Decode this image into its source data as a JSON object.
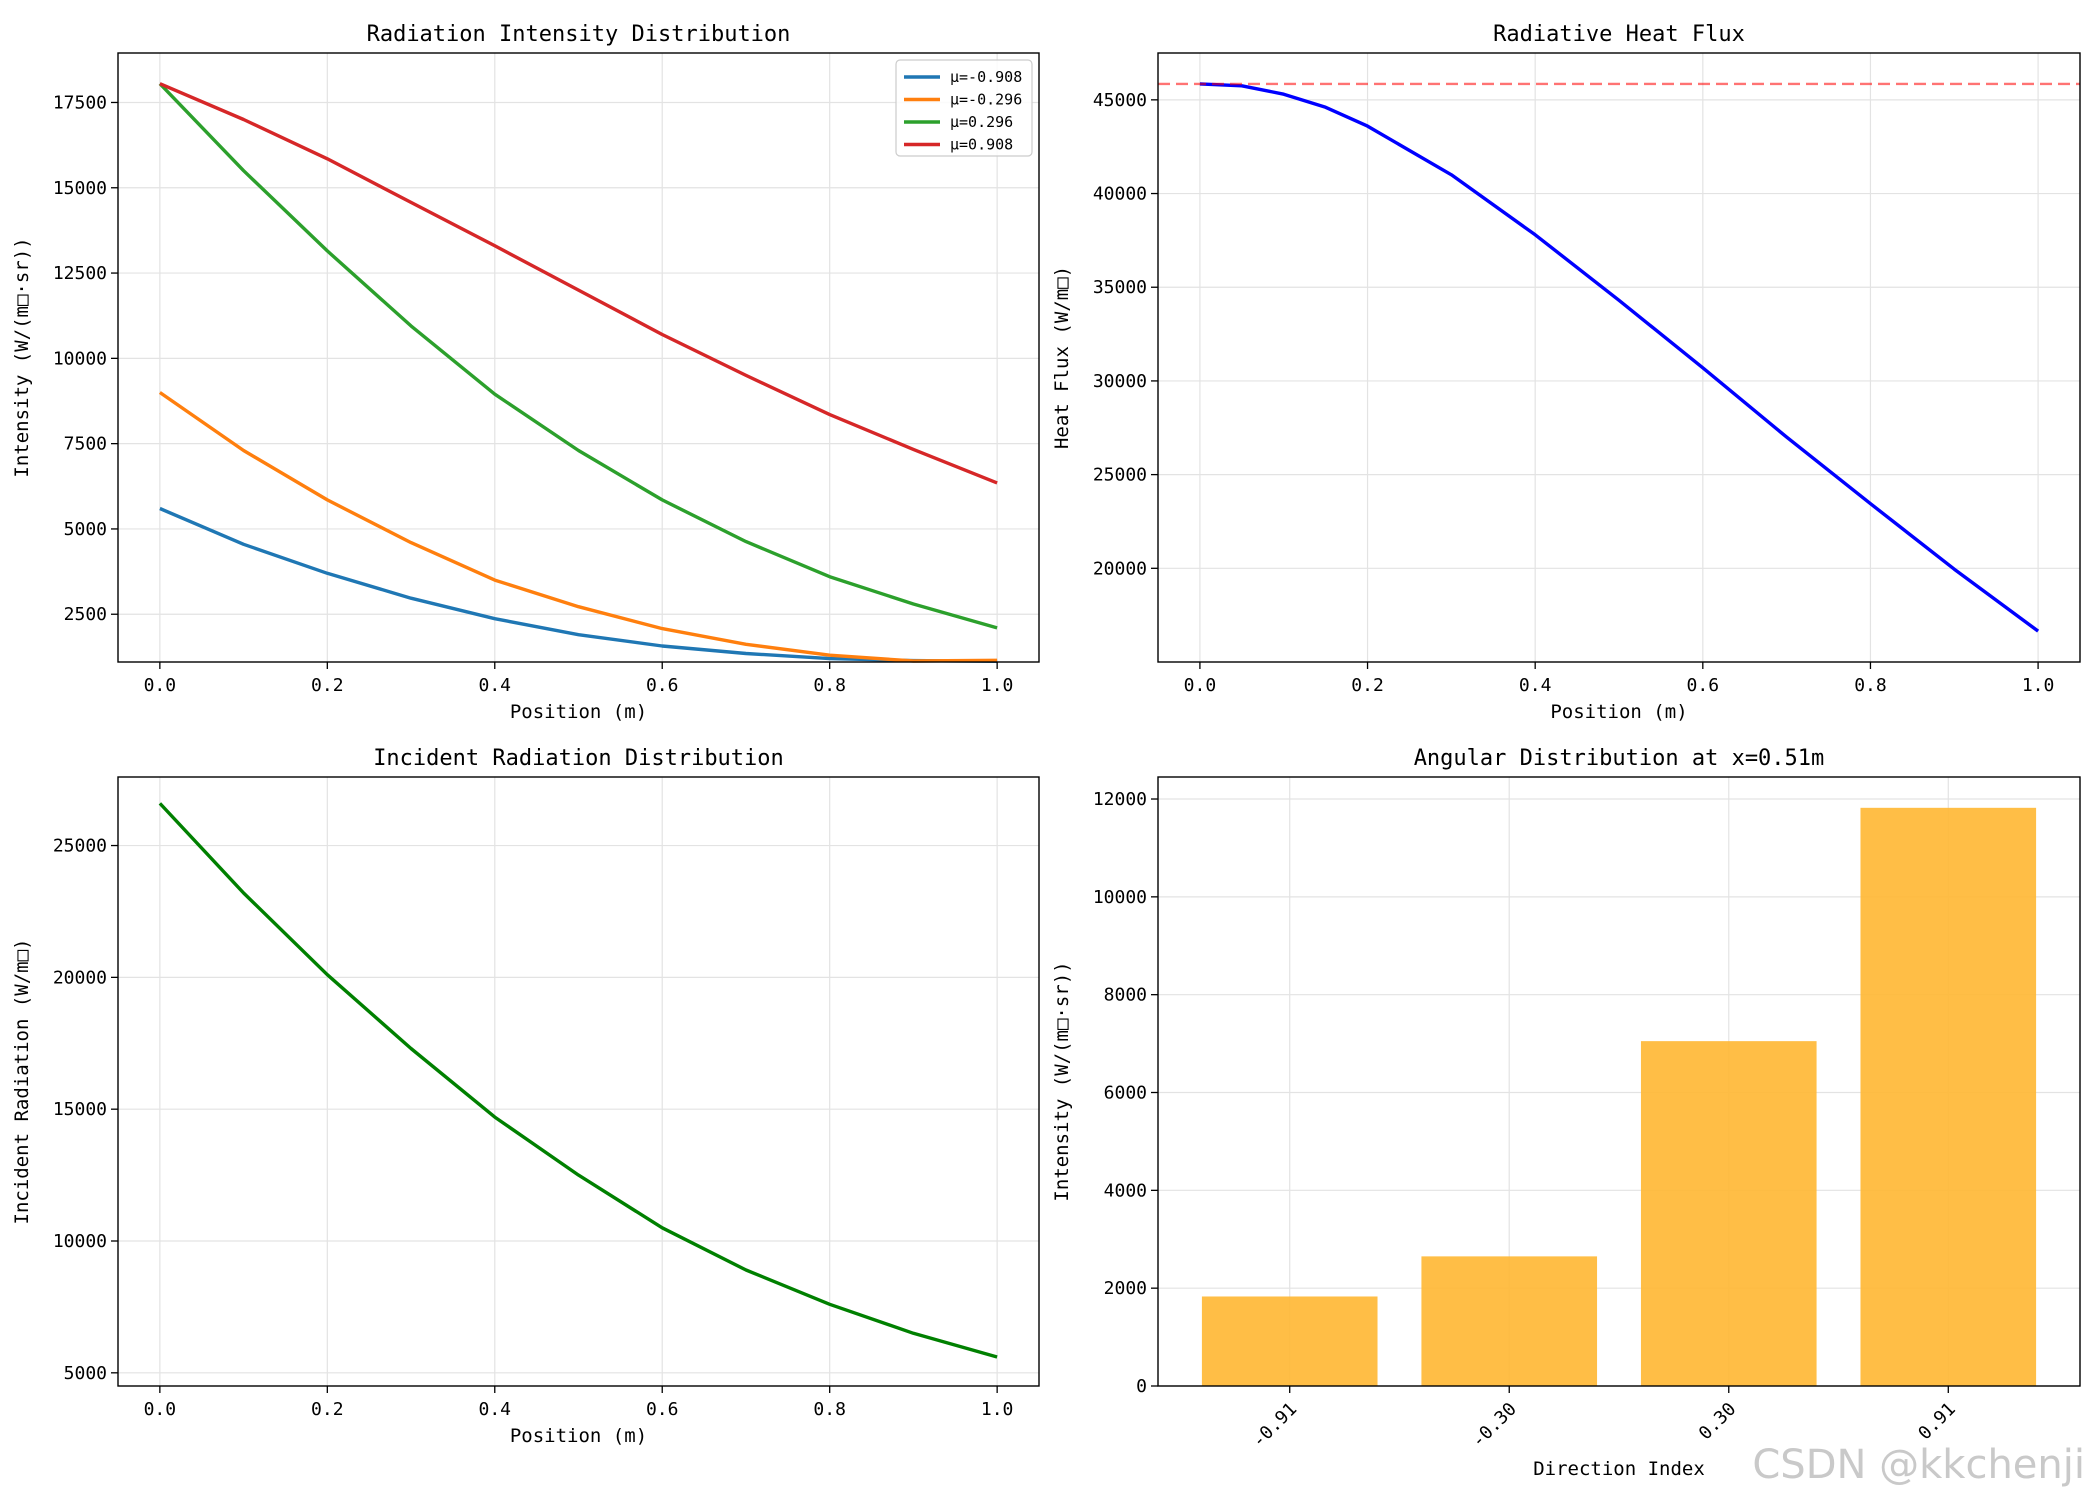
{
  "watermark": "CSDN @kkchenji",
  "chart_data": [
    {
      "id": "intensity",
      "type": "line",
      "title": "Radiation Intensity Distribution",
      "xlabel": "Position (m)",
      "ylabel": "Intensity (W/(m□·sr))",
      "xlim": [
        -0.05,
        1.05
      ],
      "ylim": [
        1100,
        18950
      ],
      "xticks": [
        0.0,
        0.2,
        0.4,
        0.6,
        0.8,
        1.0
      ],
      "xticklabels": [
        "0.0",
        "0.2",
        "0.4",
        "0.6",
        "0.8",
        "1.0"
      ],
      "yticks": [
        2500,
        5000,
        7500,
        10000,
        12500,
        15000,
        17500
      ],
      "yticklabels": [
        "2500",
        "5000",
        "7500",
        "10000",
        "12500",
        "15000",
        "17500"
      ],
      "grid": true,
      "legend": "top-right",
      "x": [
        0.0,
        0.1,
        0.2,
        0.3,
        0.4,
        0.5,
        0.6,
        0.7,
        0.8,
        0.9,
        1.0
      ],
      "series": [
        {
          "name": "μ=-0.908",
          "color": "#1f77b4",
          "values": [
            5600,
            4550,
            3700,
            2970,
            2370,
            1900,
            1570,
            1350,
            1200,
            1140,
            1120
          ]
        },
        {
          "name": "μ=-0.296",
          "color": "#ff7f0e",
          "values": [
            9000,
            7300,
            5850,
            4600,
            3500,
            2720,
            2080,
            1620,
            1300,
            1130,
            1150
          ]
        },
        {
          "name": "μ=0.296",
          "color": "#2ca02c",
          "values": [
            18050,
            15500,
            13150,
            10950,
            8950,
            7300,
            5850,
            4630,
            3600,
            2800,
            2100
          ]
        },
        {
          "name": "μ=0.908",
          "color": "#d62728",
          "values": [
            18050,
            17000,
            15850,
            14570,
            13300,
            12000,
            10700,
            9500,
            8350,
            7330,
            6350
          ]
        }
      ]
    },
    {
      "id": "heatflux",
      "type": "line",
      "title": "Radiative Heat Flux",
      "xlabel": "Position (m)",
      "ylabel": "Heat Flux (W/m□)",
      "xlim": [
        -0.05,
        1.05
      ],
      "ylim": [
        15000,
        47500
      ],
      "xticks": [
        0.0,
        0.2,
        0.4,
        0.6,
        0.8,
        1.0
      ],
      "xticklabels": [
        "0.0",
        "0.2",
        "0.4",
        "0.6",
        "0.8",
        "1.0"
      ],
      "yticks": [
        20000,
        25000,
        30000,
        35000,
        40000,
        45000
      ],
      "yticklabels": [
        "20000",
        "25000",
        "30000",
        "35000",
        "40000",
        "45000"
      ],
      "grid": true,
      "reference_line": {
        "y": 45850,
        "color": "#ff0000",
        "style": "dashed"
      },
      "x": [
        0.0,
        0.05,
        0.1,
        0.15,
        0.2,
        0.3,
        0.4,
        0.5,
        0.6,
        0.7,
        0.8,
        0.9,
        1.0
      ],
      "series": [
        {
          "color": "#0000ff",
          "values": [
            45850,
            45750,
            45300,
            44600,
            43600,
            41000,
            37800,
            34300,
            30700,
            27000,
            23450,
            19950,
            16650
          ]
        }
      ]
    },
    {
      "id": "incident",
      "type": "line",
      "title": "Incident Radiation Distribution",
      "xlabel": "Position (m)",
      "ylabel": "Incident Radiation (W/m□)",
      "xlim": [
        -0.05,
        1.05
      ],
      "ylim": [
        4500,
        27600
      ],
      "xticks": [
        0.0,
        0.2,
        0.4,
        0.6,
        0.8,
        1.0
      ],
      "xticklabels": [
        "0.0",
        "0.2",
        "0.4",
        "0.6",
        "0.8",
        "1.0"
      ],
      "yticks": [
        5000,
        10000,
        15000,
        20000,
        25000
      ],
      "yticklabels": [
        "5000",
        "10000",
        "15000",
        "20000",
        "25000"
      ],
      "grid": true,
      "x": [
        0.0,
        0.1,
        0.2,
        0.3,
        0.4,
        0.5,
        0.6,
        0.7,
        0.8,
        0.9,
        1.0
      ],
      "series": [
        {
          "color": "#008000",
          "values": [
            26600,
            23200,
            20100,
            17300,
            14700,
            12500,
            10500,
            8900,
            7600,
            6500,
            5600
          ]
        }
      ]
    },
    {
      "id": "angular",
      "type": "bar",
      "title": "Angular Distribution at x=0.51m",
      "xlabel": "Direction Index",
      "ylabel": "Intensity (W/(m□·sr))",
      "ylim": [
        0,
        12450
      ],
      "yticks": [
        0,
        2000,
        4000,
        6000,
        8000,
        10000,
        12000
      ],
      "yticklabels": [
        "0",
        "2000",
        "4000",
        "6000",
        "8000",
        "10000",
        "12000"
      ],
      "grid": true,
      "categories": [
        "-0.91",
        "-0.30",
        "0.30",
        "0.91"
      ],
      "values": [
        1830,
        2650,
        7050,
        11820
      ],
      "color": "#ffb732"
    }
  ]
}
